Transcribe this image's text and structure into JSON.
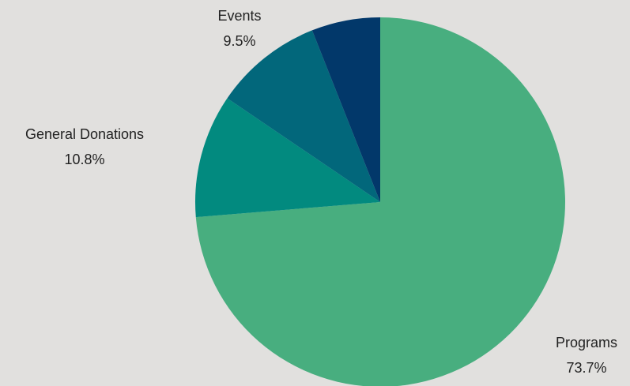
{
  "chart_data": {
    "type": "pie",
    "title": "",
    "start_angle_deg": 0,
    "direction": "clockwise",
    "slices": [
      {
        "label": "Programs",
        "percent_label": "73.7%",
        "value": 73.7,
        "color": "#48ae7f"
      },
      {
        "label": "General Donations",
        "percent_label": "10.8%",
        "value": 10.8,
        "color": "#028a7f"
      },
      {
        "label": "Events",
        "percent_label": "9.5%",
        "value": 9.5,
        "color": "#02677b"
      },
      {
        "label": "",
        "percent_label": "",
        "value": 6.0,
        "color": "#02386a"
      }
    ],
    "background": "#e1e0de"
  }
}
